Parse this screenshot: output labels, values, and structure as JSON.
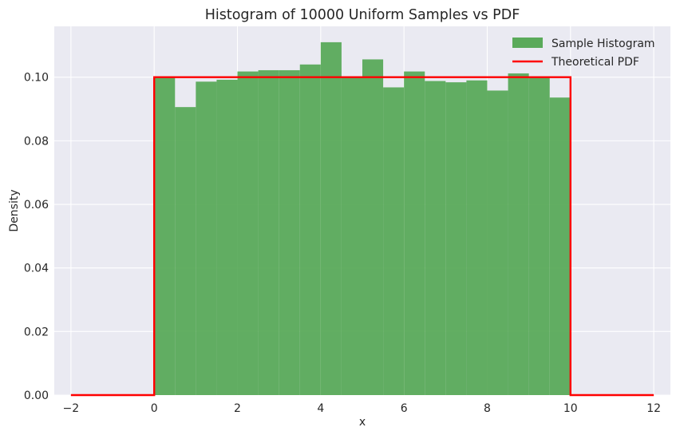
{
  "chart_data": {
    "type": "bar",
    "title": "Histogram of 10000 Uniform Samples vs PDF",
    "xlabel": "x",
    "ylabel": "Density",
    "xlim": [
      -2.4,
      12.4
    ],
    "ylim": [
      0,
      0.116
    ],
    "xticks": [
      -2,
      0,
      2,
      4,
      6,
      8,
      10,
      12
    ],
    "xtick_labels": [
      "−2",
      "0",
      "2",
      "4",
      "6",
      "8",
      "10",
      "12"
    ],
    "yticks": [
      0,
      0.02,
      0.04,
      0.06,
      0.08,
      0.1
    ],
    "ytick_labels": [
      "0.00",
      "0.02",
      "0.04",
      "0.06",
      "0.08",
      "0.10"
    ],
    "grid": true,
    "legend_position": "top-right",
    "series": [
      {
        "name": "Sample Histogram",
        "kind": "histogram",
        "color": "#5aaa5a",
        "bin_edges": [
          0,
          0.5,
          1,
          1.5,
          2,
          2.5,
          3,
          3.5,
          4,
          4.5,
          5,
          5.5,
          6,
          6.5,
          7,
          7.5,
          8,
          8.5,
          9,
          9.5,
          10
        ],
        "values": [
          0.1,
          0.0906,
          0.0986,
          0.0992,
          0.1018,
          0.1022,
          0.1022,
          0.104,
          0.111,
          0.0998,
          0.1056,
          0.0968,
          0.1018,
          0.0988,
          0.0984,
          0.099,
          0.0958,
          0.1012,
          0.1,
          0.0936
        ]
      },
      {
        "name": "Theoretical PDF",
        "kind": "line",
        "color": "#ff0000",
        "x": [
          -2,
          0,
          0,
          10,
          10,
          12
        ],
        "y": [
          0,
          0,
          0.1,
          0.1,
          0,
          0
        ]
      }
    ]
  },
  "colors": {
    "plot_background": "#eaeaf2",
    "grid": "#ffffff",
    "text": "#262626"
  }
}
